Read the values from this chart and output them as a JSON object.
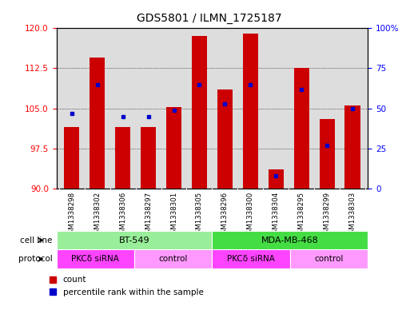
{
  "title": "GDS5801 / ILMN_1725187",
  "samples": [
    "GSM1338298",
    "GSM1338302",
    "GSM1338306",
    "GSM1338297",
    "GSM1338301",
    "GSM1338305",
    "GSM1338296",
    "GSM1338300",
    "GSM1338304",
    "GSM1338295",
    "GSM1338299",
    "GSM1338303"
  ],
  "red_values": [
    101.5,
    114.5,
    101.5,
    101.5,
    105.3,
    118.5,
    108.5,
    119.0,
    93.5,
    112.5,
    103.0,
    105.5
  ],
  "blue_values": [
    47,
    65,
    45,
    45,
    49,
    65,
    53,
    65,
    8,
    62,
    27,
    50
  ],
  "ylim_left": [
    90,
    120
  ],
  "ylim_right": [
    0,
    100
  ],
  "yticks_left": [
    90,
    97.5,
    105,
    112.5,
    120
  ],
  "yticks_right": [
    0,
    25,
    50,
    75,
    100
  ],
  "bar_color": "#CC0000",
  "blue_color": "#0000CC",
  "plot_bg_color": "#DDDDDD",
  "cell_line_color_bt549": "#99EE99",
  "cell_line_color_mda": "#44DD44",
  "protocol_sirna_color": "#FF44FF",
  "protocol_control_color": "#FF99FF",
  "xtick_bg_color": "#CCCCCC",
  "fig_bg_color": "#FFFFFF"
}
